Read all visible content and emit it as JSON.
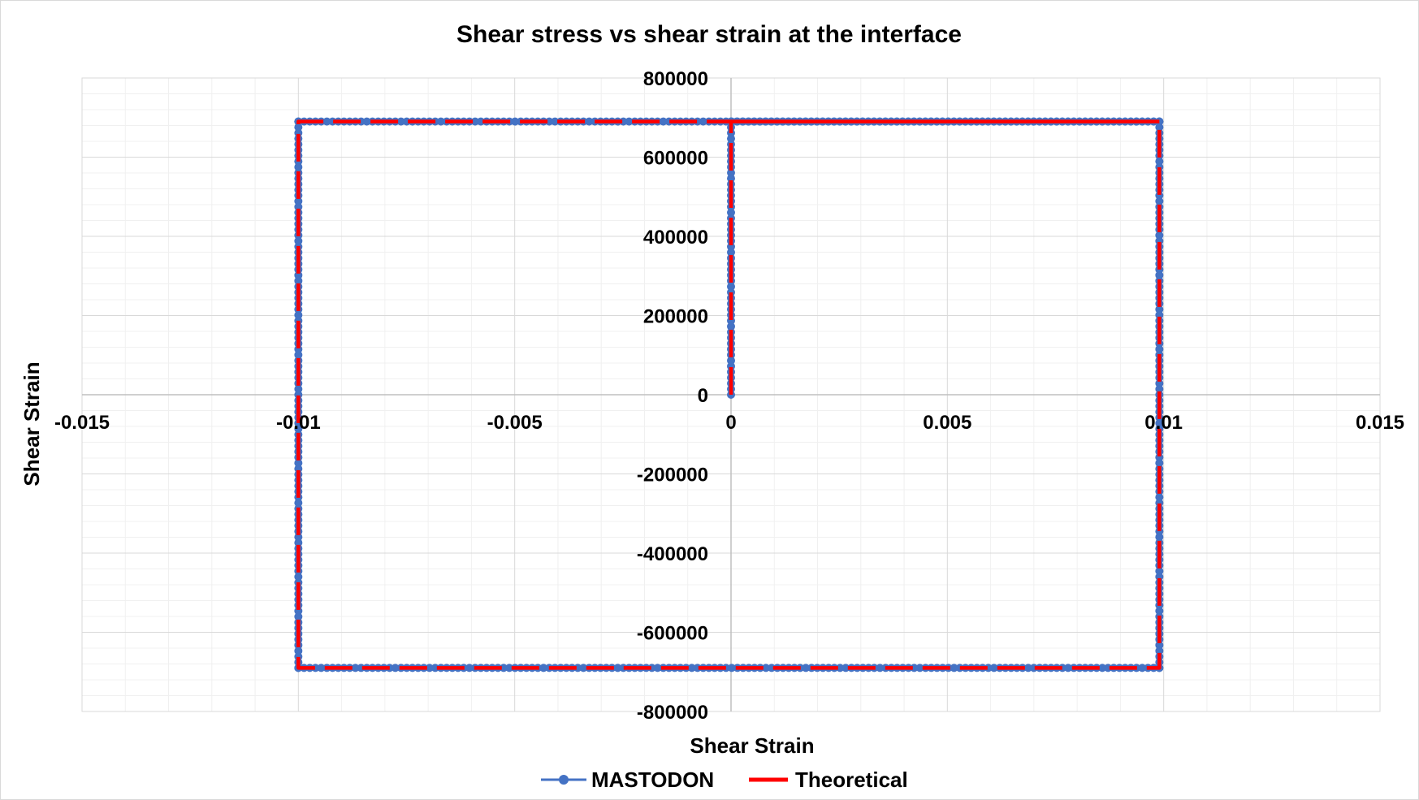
{
  "chart_data": {
    "type": "scatter",
    "title": "Shear stress vs shear strain at the interface",
    "xlabel": "Shear Strain",
    "ylabel": "Shear Strain",
    "xlim": [
      -0.015,
      0.015
    ],
    "ylim": [
      -800000,
      800000
    ],
    "x_ticks": [
      "-0.015",
      "-0.01",
      "-0.005",
      "0",
      "0.005",
      "0.01",
      "0.015"
    ],
    "y_ticks": [
      "800000",
      "600000",
      "400000",
      "200000",
      "0",
      "-200000",
      "-400000",
      "-600000",
      "-800000"
    ],
    "x_major_step": 0.005,
    "x_minor_step": 0.001,
    "y_major_step": 200000,
    "y_minor_step": 40000,
    "grid": true,
    "legend_position": "bottom",
    "series": [
      {
        "name": "MASTODON",
        "style": "line-with-markers",
        "color": "#4472c4",
        "x": [
          0,
          0,
          0.0099,
          0.0099,
          -0.01,
          -0.01,
          0.0099
        ],
        "y": [
          0,
          690000,
          690000,
          -690000,
          -690000,
          690000,
          690000
        ]
      },
      {
        "name": "Theoretical",
        "style": "dashed-line",
        "color": "#ff0000",
        "x": [
          0,
          0,
          0.0099,
          0.0099,
          -0.01,
          -0.01,
          0.0099
        ],
        "y": [
          0,
          690000,
          690000,
          -690000,
          -690000,
          690000,
          690000
        ]
      }
    ]
  }
}
